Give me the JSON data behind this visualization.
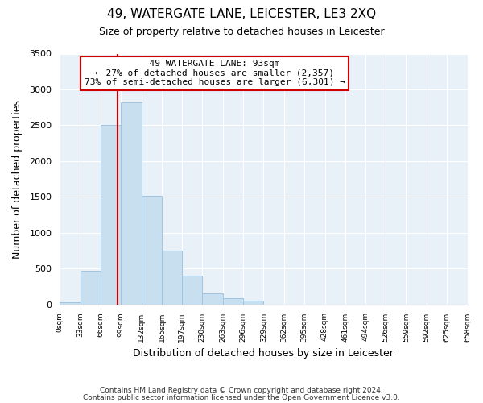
{
  "title": "49, WATERGATE LANE, LEICESTER, LE3 2XQ",
  "subtitle": "Size of property relative to detached houses in Leicester",
  "xlabel": "Distribution of detached houses by size in Leicester",
  "ylabel": "Number of detached properties",
  "bar_color": "#c8dff0",
  "bar_edge_color": "#a0c4e0",
  "bin_edges": [
    0,
    33,
    66,
    99,
    132,
    165,
    197,
    230,
    263,
    296,
    329,
    362,
    395,
    428,
    461,
    494,
    526,
    559,
    592,
    625,
    658
  ],
  "bar_heights": [
    30,
    470,
    2500,
    2820,
    1510,
    750,
    400,
    155,
    80,
    50,
    0,
    0,
    0,
    0,
    0,
    0,
    0,
    0,
    0,
    0
  ],
  "tick_labels": [
    "0sqm",
    "33sqm",
    "66sqm",
    "99sqm",
    "132sqm",
    "165sqm",
    "197sqm",
    "230sqm",
    "263sqm",
    "296sqm",
    "329sqm",
    "362sqm",
    "395sqm",
    "428sqm",
    "461sqm",
    "494sqm",
    "526sqm",
    "559sqm",
    "592sqm",
    "625sqm",
    "658sqm"
  ],
  "ylim": [
    0,
    3500
  ],
  "yticks": [
    0,
    500,
    1000,
    1500,
    2000,
    2500,
    3000,
    3500
  ],
  "property_line_x": 93,
  "annotation_title": "49 WATERGATE LANE: 93sqm",
  "annotation_line1": "← 27% of detached houses are smaller (2,357)",
  "annotation_line2": "73% of semi-detached houses are larger (6,301) →",
  "annotation_box_color": "#ffffff",
  "annotation_box_edge": "#cc0000",
  "property_line_color": "#cc0000",
  "bg_color": "#ffffff",
  "plot_bg_color": "#e8f0f8",
  "grid_color": "#ffffff",
  "footnote1": "Contains HM Land Registry data © Crown copyright and database right 2024.",
  "footnote2": "Contains public sector information licensed under the Open Government Licence v3.0."
}
